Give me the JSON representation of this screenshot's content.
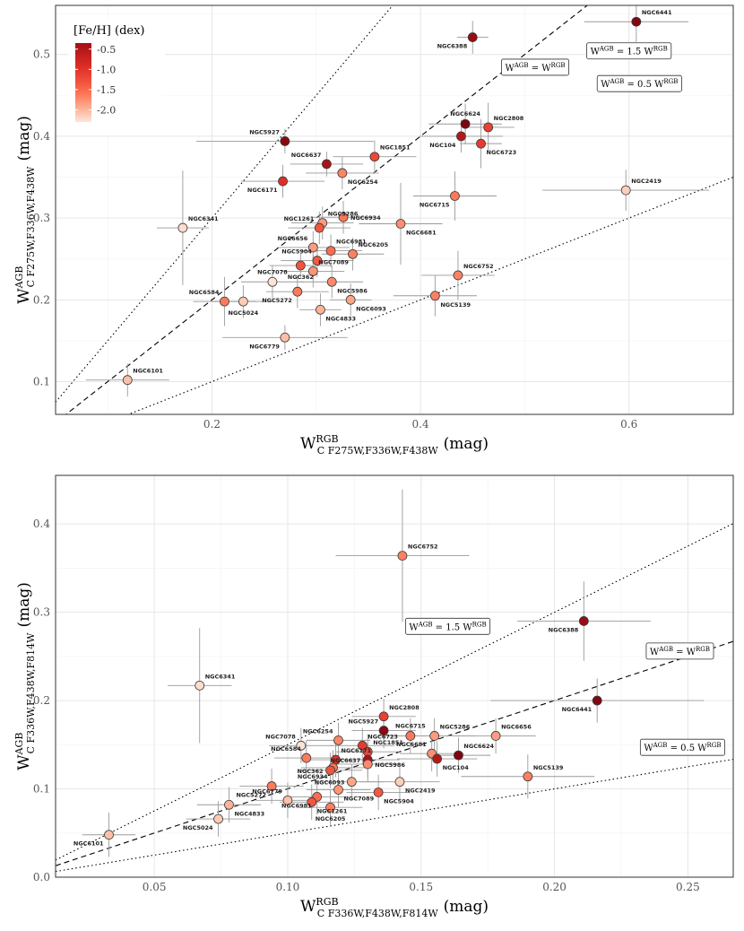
{
  "chart_data": [
    {
      "type": "scatter",
      "id": "top",
      "xlabel": {
        "main": "W",
        "sup": "RGB",
        "sub": "C F275W,F336W,F438W",
        "unit": "(mag)"
      },
      "ylabel": {
        "main": "W",
        "sup": "AGB",
        "sub": "C F275W,F336W,F438W",
        "unit": "(mag)"
      },
      "xlim": [
        0.05,
        0.7
      ],
      "ylim": [
        0.06,
        0.56
      ],
      "xticks": [
        0.2,
        0.4,
        0.6
      ],
      "xtick_labels": [
        "0.2",
        "0.4",
        "0.6"
      ],
      "yticks": [
        0.1,
        0.2,
        0.3,
        0.4,
        0.5
      ],
      "ytick_labels": [
        "0.1",
        "0.2",
        "0.3",
        "0.4",
        "0.5"
      ],
      "xminor": [
        0.1,
        0.3,
        0.5,
        0.7
      ],
      "yminor": [
        0.15,
        0.25,
        0.35,
        0.45,
        0.55
      ],
      "legend": {
        "title": "[Fe/H] (dex)",
        "ticks": [
          -0.5,
          -1.0,
          -1.5,
          -2.0
        ],
        "tick_labels": [
          "-0.5",
          "-1.0",
          "-1.5",
          "-2.0"
        ],
        "range": [
          -2.3,
          -0.35
        ],
        "position": "top-left"
      },
      "ref_lines": [
        {
          "slope": 1.5,
          "style": "dotted",
          "label": {
            "lhs": "W",
            "lhs_sup": "AGB",
            "rhs_pre": " = 1.5 W",
            "rhs_sup": "RGB"
          },
          "label_at": [
            0.6,
            0.5
          ]
        },
        {
          "slope": 1.0,
          "style": "dashed",
          "label": {
            "lhs": "W",
            "lhs_sup": "AGB",
            "rhs_pre": " = W",
            "rhs_sup": "RGB"
          },
          "label_at": [
            0.51,
            0.48
          ]
        },
        {
          "slope": 0.5,
          "style": "dotted",
          "label": {
            "lhs": "W",
            "lhs_sup": "AGB",
            "rhs_pre": " = 0.5 W",
            "rhs_sup": "RGB"
          },
          "label_at": [
            0.61,
            0.46
          ]
        }
      ],
      "points": [
        {
          "name": "NGC6441",
          "x": 0.607,
          "y": 0.54,
          "xerr": 0.05,
          "yerr": 0.025,
          "feh": -0.46,
          "lpos": "ne"
        },
        {
          "name": "NGC6388",
          "x": 0.45,
          "y": 0.521,
          "xerr": 0.015,
          "yerr": 0.02,
          "feh": -0.55,
          "lpos": "sw"
        },
        {
          "name": "NGC5927",
          "x": 0.27,
          "y": 0.394,
          "xerr": 0.085,
          "yerr": 0.015,
          "feh": -0.49,
          "lpos": "nw"
        },
        {
          "name": "NGC6624",
          "x": 0.443,
          "y": 0.415,
          "xerr": 0.035,
          "yerr": 0.025,
          "feh": -0.44,
          "lpos": "n"
        },
        {
          "name": "NGC2808",
          "x": 0.465,
          "y": 0.411,
          "xerr": 0.025,
          "yerr": 0.03,
          "feh": -1.14,
          "lpos": "ne"
        },
        {
          "name": "NGC104",
          "x": 0.439,
          "y": 0.4,
          "xerr": 0.04,
          "yerr": 0.02,
          "feh": -0.72,
          "lpos": "sw"
        },
        {
          "name": "NGC6723",
          "x": 0.458,
          "y": 0.391,
          "xerr": 0.02,
          "yerr": 0.03,
          "feh": -1.1,
          "lpos": "se"
        },
        {
          "name": "NGC1851",
          "x": 0.356,
          "y": 0.375,
          "xerr": 0.04,
          "yerr": 0.02,
          "feh": -1.18,
          "lpos": "ne"
        },
        {
          "name": "NGC6637",
          "x": 0.31,
          "y": 0.366,
          "xerr": 0.035,
          "yerr": 0.015,
          "feh": -0.64,
          "lpos": "nw"
        },
        {
          "name": "NGC6254",
          "x": 0.325,
          "y": 0.355,
          "xerr": 0.035,
          "yerr": 0.02,
          "feh": -1.56,
          "lpos": "se"
        },
        {
          "name": "NGC6171",
          "x": 0.268,
          "y": 0.345,
          "xerr": 0.04,
          "yerr": 0.02,
          "feh": -1.02,
          "lpos": "sw"
        },
        {
          "name": "NGC2419",
          "x": 0.597,
          "y": 0.334,
          "xerr": 0.08,
          "yerr": 0.025,
          "feh": -2.15,
          "lpos": "ne"
        },
        {
          "name": "NGC6715",
          "x": 0.433,
          "y": 0.327,
          "xerr": 0.04,
          "yerr": 0.03,
          "feh": -1.49,
          "lpos": "sw"
        },
        {
          "name": "NGC5286",
          "x": 0.306,
          "y": 0.294,
          "xerr": 0.03,
          "yerr": 0.02,
          "feh": -1.69,
          "lpos": "ne"
        },
        {
          "name": "NGC1261",
          "x": 0.303,
          "y": 0.288,
          "xerr": 0.03,
          "yerr": 0.02,
          "feh": -1.27,
          "lpos": "nw"
        },
        {
          "name": "NGC6934",
          "x": 0.326,
          "y": 0.301,
          "xerr": 0.03,
          "yerr": 0.02,
          "feh": -1.47,
          "lpos": "e"
        },
        {
          "name": "NGC6341",
          "x": 0.172,
          "y": 0.288,
          "xerr": 0.025,
          "yerr": 0.07,
          "feh": -2.31,
          "lpos": "ne"
        },
        {
          "name": "NGC6681",
          "x": 0.381,
          "y": 0.293,
          "xerr": 0.04,
          "yerr": 0.05,
          "feh": -1.62,
          "lpos": "se"
        },
        {
          "name": "NGC6656",
          "x": 0.297,
          "y": 0.264,
          "xerr": 0.035,
          "yerr": 0.02,
          "feh": -1.7,
          "lpos": "nw"
        },
        {
          "name": "NGC6981",
          "x": 0.314,
          "y": 0.26,
          "xerr": 0.03,
          "yerr": 0.02,
          "feh": -1.42,
          "lpos": "ne"
        },
        {
          "name": "NGC6205",
          "x": 0.335,
          "y": 0.256,
          "xerr": 0.03,
          "yerr": 0.02,
          "feh": -1.53,
          "lpos": "ne"
        },
        {
          "name": "NGC5904",
          "x": 0.301,
          "y": 0.248,
          "xerr": 0.035,
          "yerr": 0.02,
          "feh": -1.29,
          "lpos": "nw"
        },
        {
          "name": "NGC7089",
          "x": 0.297,
          "y": 0.235,
          "xerr": 0.03,
          "yerr": 0.02,
          "feh": -1.65,
          "lpos": "ne"
        },
        {
          "name": "NGC6752",
          "x": 0.436,
          "y": 0.23,
          "xerr": 0.035,
          "yerr": 0.03,
          "feh": -1.54,
          "lpos": "ne"
        },
        {
          "name": "NGC362",
          "x": 0.285,
          "y": 0.242,
          "xerr": 0.03,
          "yerr": 0.015,
          "feh": -1.26,
          "lpos": "s"
        },
        {
          "name": "NGC7078",
          "x": 0.258,
          "y": 0.222,
          "xerr": 0.03,
          "yerr": 0.02,
          "feh": -2.37,
          "lpos": "n"
        },
        {
          "name": "NGC5986",
          "x": 0.315,
          "y": 0.222,
          "xerr": 0.03,
          "yerr": 0.02,
          "feh": -1.59,
          "lpos": "se"
        },
        {
          "name": "NGC6584",
          "x": 0.212,
          "y": 0.198,
          "xerr": 0.03,
          "yerr": 0.03,
          "feh": -1.5,
          "lpos": "nw"
        },
        {
          "name": "NGC5024",
          "x": 0.23,
          "y": 0.198,
          "xerr": 0.03,
          "yerr": 0.02,
          "feh": -2.1,
          "lpos": "s"
        },
        {
          "name": "NGC5272",
          "x": 0.282,
          "y": 0.21,
          "xerr": 0.03,
          "yerr": 0.02,
          "feh": -1.5,
          "lpos": "sw"
        },
        {
          "name": "NGC6093",
          "x": 0.333,
          "y": 0.2,
          "xerr": 0.02,
          "yerr": 0.02,
          "feh": -1.75,
          "lpos": "se"
        },
        {
          "name": "NGC4833",
          "x": 0.304,
          "y": 0.188,
          "xerr": 0.02,
          "yerr": 0.02,
          "feh": -1.85,
          "lpos": "se"
        },
        {
          "name": "NGC5139",
          "x": 0.414,
          "y": 0.205,
          "xerr": 0.04,
          "yerr": 0.025,
          "feh": -1.53,
          "lpos": "se"
        },
        {
          "name": "NGC6779",
          "x": 0.27,
          "y": 0.154,
          "xerr": 0.06,
          "yerr": 0.015,
          "feh": -1.98,
          "lpos": "sw"
        },
        {
          "name": "NGC6101",
          "x": 0.119,
          "y": 0.102,
          "xerr": 0.04,
          "yerr": 0.02,
          "feh": -1.98,
          "lpos": "ne"
        }
      ]
    },
    {
      "type": "scatter",
      "id": "bottom",
      "xlabel": {
        "main": "W",
        "sup": "RGB",
        "sub": "C F336W,F438W,F814W",
        "unit": "(mag)"
      },
      "ylabel": {
        "main": "W",
        "sup": "AGB",
        "sub": "C F336W,F438W,F814W",
        "unit": "(mag)"
      },
      "xlim": [
        0.013,
        0.267
      ],
      "ylim": [
        0.0,
        0.455
      ],
      "xticks": [
        0.05,
        0.1,
        0.15,
        0.2,
        0.25
      ],
      "xtick_labels": [
        "0.05",
        "0.10",
        "0.15",
        "0.20",
        "0.25"
      ],
      "yticks": [
        0.0,
        0.1,
        0.2,
        0.3,
        0.4
      ],
      "ytick_labels": [
        "0.0",
        "0.1",
        "0.2",
        "0.3",
        "0.4"
      ],
      "xminor": [
        0.075,
        0.125,
        0.175,
        0.225
      ],
      "yminor": [
        0.05,
        0.15,
        0.25,
        0.35,
        0.45
      ],
      "ref_lines": [
        {
          "slope": 1.5,
          "style": "dotted",
          "label": {
            "lhs": "W",
            "lhs_sup": "AGB",
            "rhs_pre": " = 1.5 W",
            "rhs_sup": "RGB"
          },
          "label_at": [
            0.16,
            0.28
          ]
        },
        {
          "slope": 1.0,
          "style": "dashed",
          "label": {
            "lhs": "W",
            "lhs_sup": "AGB",
            "rhs_pre": " = W",
            "rhs_sup": "RGB"
          },
          "label_at": [
            0.247,
            0.252
          ]
        },
        {
          "slope": 0.5,
          "style": "dotted",
          "label": {
            "lhs": "W",
            "lhs_sup": "AGB",
            "rhs_pre": " = 0.5 W",
            "rhs_sup": "RGB"
          },
          "label_at": [
            0.248,
            0.143
          ]
        }
      ],
      "points": [
        {
          "name": "NGC6752",
          "x": 0.143,
          "y": 0.364,
          "xerr": 0.025,
          "yerr": 0.075,
          "feh": -1.54,
          "lpos": "ne"
        },
        {
          "name": "NGC6388",
          "x": 0.211,
          "y": 0.29,
          "xerr": 0.025,
          "yerr": 0.045,
          "feh": -0.55,
          "lpos": "sw"
        },
        {
          "name": "NGC6341",
          "x": 0.067,
          "y": 0.217,
          "xerr": 0.012,
          "yerr": 0.065,
          "feh": -2.31,
          "lpos": "ne"
        },
        {
          "name": "NGC6441",
          "x": 0.216,
          "y": 0.2,
          "xerr": 0.04,
          "yerr": 0.025,
          "feh": -0.46,
          "lpos": "sw"
        },
        {
          "name": "NGC2808",
          "x": 0.136,
          "y": 0.182,
          "xerr": 0.012,
          "yerr": 0.02,
          "feh": -1.14,
          "lpos": "ne"
        },
        {
          "name": "NGC5927",
          "x": 0.136,
          "y": 0.166,
          "xerr": 0.012,
          "yerr": 0.02,
          "feh": -0.49,
          "lpos": "nw"
        },
        {
          "name": "NGC6715",
          "x": 0.146,
          "y": 0.16,
          "xerr": 0.012,
          "yerr": 0.02,
          "feh": -1.49,
          "lpos": "n"
        },
        {
          "name": "NGC5286",
          "x": 0.155,
          "y": 0.16,
          "xerr": 0.015,
          "yerr": 0.02,
          "feh": -1.69,
          "lpos": "ne"
        },
        {
          "name": "NGC6656",
          "x": 0.178,
          "y": 0.16,
          "xerr": 0.015,
          "yerr": 0.02,
          "feh": -1.7,
          "lpos": "ne"
        },
        {
          "name": "NGC6254",
          "x": 0.119,
          "y": 0.155,
          "xerr": 0.012,
          "yerr": 0.02,
          "feh": -1.56,
          "lpos": "nw"
        },
        {
          "name": "NGC7078",
          "x": 0.105,
          "y": 0.149,
          "xerr": 0.012,
          "yerr": 0.02,
          "feh": -2.37,
          "lpos": "nw"
        },
        {
          "name": "NGC6723",
          "x": 0.128,
          "y": 0.149,
          "xerr": 0.012,
          "yerr": 0.02,
          "feh": -1.1,
          "lpos": "ne"
        },
        {
          "name": "NGC1851",
          "x": 0.13,
          "y": 0.142,
          "xerr": 0.012,
          "yerr": 0.02,
          "feh": -1.18,
          "lpos": "ne"
        },
        {
          "name": "NGC6681",
          "x": 0.154,
          "y": 0.14,
          "xerr": 0.012,
          "yerr": 0.02,
          "feh": -1.62,
          "lpos": "nw"
        },
        {
          "name": "NGC6624",
          "x": 0.164,
          "y": 0.138,
          "xerr": 0.012,
          "yerr": 0.02,
          "feh": -0.44,
          "lpos": "ne"
        },
        {
          "name": "NGC104",
          "x": 0.156,
          "y": 0.134,
          "xerr": 0.015,
          "yerr": 0.02,
          "feh": -0.72,
          "lpos": "se"
        },
        {
          "name": "NGC6584",
          "x": 0.107,
          "y": 0.135,
          "xerr": 0.012,
          "yerr": 0.02,
          "feh": -1.5,
          "lpos": "nw"
        },
        {
          "name": "NGC6171",
          "x": 0.118,
          "y": 0.133,
          "xerr": 0.012,
          "yerr": 0.02,
          "feh": -1.02,
          "lpos": "ne"
        },
        {
          "name": "NGC6637",
          "x": 0.13,
          "y": 0.133,
          "xerr": 0.012,
          "yerr": 0.02,
          "feh": -0.64,
          "lpos": "w"
        },
        {
          "name": "NGC5986",
          "x": 0.13,
          "y": 0.128,
          "xerr": 0.012,
          "yerr": 0.02,
          "feh": -1.59,
          "lpos": "e"
        },
        {
          "name": "NGC6934",
          "x": 0.117,
          "y": 0.124,
          "xerr": 0.012,
          "yerr": 0.02,
          "feh": -1.47,
          "lpos": "sw"
        },
        {
          "name": "NGC362",
          "x": 0.116,
          "y": 0.121,
          "xerr": 0.012,
          "yerr": 0.02,
          "feh": -1.26,
          "lpos": "w"
        },
        {
          "name": "NGC2419",
          "x": 0.142,
          "y": 0.108,
          "xerr": 0.015,
          "yerr": 0.02,
          "feh": -2.15,
          "lpos": "se"
        },
        {
          "name": "NGC5139",
          "x": 0.19,
          "y": 0.114,
          "xerr": 0.025,
          "yerr": 0.025,
          "feh": -1.53,
          "lpos": "ne"
        },
        {
          "name": "NGC6093",
          "x": 0.124,
          "y": 0.108,
          "xerr": 0.012,
          "yerr": 0.02,
          "feh": -1.75,
          "lpos": "w"
        },
        {
          "name": "NGC5272",
          "x": 0.094,
          "y": 0.103,
          "xerr": 0.012,
          "yerr": 0.02,
          "feh": -1.5,
          "lpos": "sw"
        },
        {
          "name": "NGC7089",
          "x": 0.119,
          "y": 0.099,
          "xerr": 0.012,
          "yerr": 0.02,
          "feh": -1.65,
          "lpos": "se"
        },
        {
          "name": "NGC5904",
          "x": 0.134,
          "y": 0.096,
          "xerr": 0.012,
          "yerr": 0.02,
          "feh": -1.29,
          "lpos": "se"
        },
        {
          "name": "NGC4833",
          "x": 0.078,
          "y": 0.082,
          "xerr": 0.012,
          "yerr": 0.02,
          "feh": -1.85,
          "lpos": "se"
        },
        {
          "name": "NGC6981",
          "x": 0.111,
          "y": 0.091,
          "xerr": 0.012,
          "yerr": 0.02,
          "feh": -1.42,
          "lpos": "sw"
        },
        {
          "name": "NGC6779",
          "x": 0.1,
          "y": 0.087,
          "xerr": 0.012,
          "yerr": 0.02,
          "feh": -1.98,
          "lpos": "nw"
        },
        {
          "name": "NGC1261",
          "x": 0.109,
          "y": 0.085,
          "xerr": 0.012,
          "yerr": 0.02,
          "feh": -1.27,
          "lpos": "se"
        },
        {
          "name": "NGC6205",
          "x": 0.116,
          "y": 0.079,
          "xerr": 0.012,
          "yerr": 0.02,
          "feh": -1.53,
          "lpos": "s"
        },
        {
          "name": "NGC5024",
          "x": 0.074,
          "y": 0.066,
          "xerr": 0.012,
          "yerr": 0.02,
          "feh": -2.1,
          "lpos": "sw"
        },
        {
          "name": "NGC6101",
          "x": 0.033,
          "y": 0.048,
          "xerr": 0.01,
          "yerr": 0.025,
          "feh": -1.98,
          "lpos": "sw"
        }
      ]
    }
  ]
}
